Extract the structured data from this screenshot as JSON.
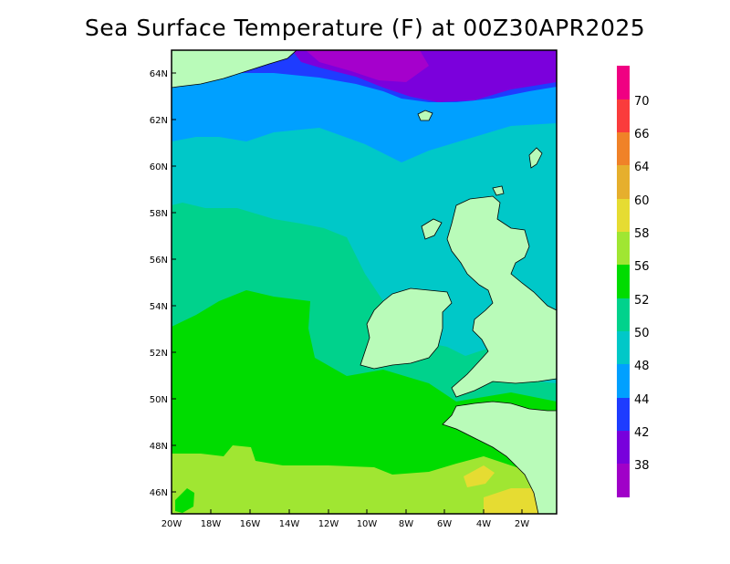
{
  "title": "Sea Surface Temperature (F) at 00Z30APR2025",
  "map": {
    "lat_labels": [
      "64N",
      "62N",
      "60N",
      "58N",
      "56N",
      "54N",
      "52N",
      "50N",
      "48N",
      "46N"
    ],
    "lon_labels": [
      "20W",
      "18W",
      "16W",
      "14W",
      "12W",
      "10W",
      "8W",
      "6W",
      "4W",
      "2W"
    ],
    "land_color": "#b9fbb9",
    "colors": {
      "c36_38": "#a500cc",
      "c38_42": "#7b00dc",
      "c42_44": "#1e3cff",
      "c44_48": "#00a0ff",
      "c48_50": "#00c8c8",
      "c50_52": "#00d28c",
      "c52_56": "#00dc00",
      "c56_58": "#a0e632",
      "c58_60": "#e6dc32"
    }
  },
  "colorbar": {
    "labels": [
      "38",
      "42",
      "44",
      "48",
      "50",
      "52",
      "56",
      "58",
      "60",
      "64",
      "66",
      "70"
    ],
    "colors": [
      "#a000c8",
      "#7800dc",
      "#1e3cff",
      "#00a0ff",
      "#00c8c8",
      "#00d28c",
      "#00dc00",
      "#a0e632",
      "#e6dc32",
      "#e6af2d",
      "#f08228",
      "#fa3c3c",
      "#f00082"
    ]
  }
}
